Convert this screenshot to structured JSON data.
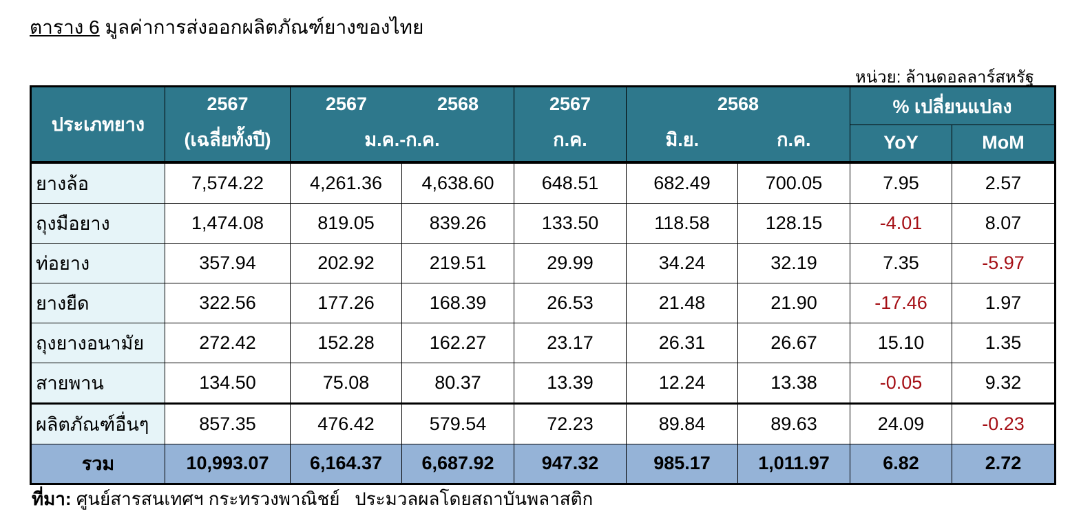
{
  "title": {
    "label": "ตาราง 6",
    "text": "มูลค่าการส่งออกผลิตภัณฑ์ยางของไทย"
  },
  "unit": "หน่วย: ล้านดอลลาร์สหรัฐ",
  "header": {
    "type": "ประเภทยาง",
    "c1_year": "2567",
    "c1_sub": "(เฉลี่ยทั้งปี)",
    "c2_year_a": "2567",
    "c2_year_b": "2568",
    "c2_sub": "ม.ค.-ก.ค.",
    "c3_year": "2567",
    "c3_sub": "ก.ค.",
    "c4_year": "2568",
    "c4_sub_a": "มิ.ย.",
    "c4_sub_b": "ก.ค.",
    "c5": "% เปลี่ยนแปลง",
    "yoy": "YoY",
    "mom": "MoM"
  },
  "rows": [
    {
      "name": "ยางล้อ",
      "values": [
        "7,574.22",
        "4,261.36",
        "4,638.60",
        "648.51",
        "682.49",
        "700.05",
        "7.95",
        "2.57"
      ]
    },
    {
      "name": "ถุงมือยาง",
      "values": [
        "1,474.08",
        "819.05",
        "839.26",
        "133.50",
        "118.58",
        "128.15",
        "-4.01",
        "8.07"
      ]
    },
    {
      "name": "ท่อยาง",
      "values": [
        "357.94",
        "202.92",
        "219.51",
        "29.99",
        "34.24",
        "32.19",
        "7.35",
        "-5.97"
      ]
    },
    {
      "name": "ยางยืด",
      "values": [
        "322.56",
        "177.26",
        "168.39",
        "26.53",
        "21.48",
        "21.90",
        "-17.46",
        "1.97"
      ]
    },
    {
      "name": "ถุงยางอนามัย",
      "values": [
        "272.42",
        "152.28",
        "162.27",
        "23.17",
        "26.31",
        "26.67",
        "15.10",
        "1.35"
      ]
    },
    {
      "name": "สายพาน",
      "values": [
        "134.50",
        "75.08",
        "80.37",
        "13.39",
        "12.24",
        "13.38",
        "-0.05",
        "9.32"
      ]
    },
    {
      "name": "ผลิตภัณฑ์อื่นๆ",
      "values": [
        "857.35",
        "476.42",
        "579.54",
        "72.23",
        "89.84",
        "89.63",
        "24.09",
        "-0.23"
      ]
    }
  ],
  "total": {
    "name": "รวม",
    "values": [
      "10,993.07",
      "6,164.37",
      "6,687.92",
      "947.32",
      "985.17",
      "1,011.97",
      "6.82",
      "2.72"
    ]
  },
  "source": {
    "label": "ที่มา:",
    "text": "ศูนย์สารสนเทศฯ กระทรวงพาณิชย์   ประมวลผลโดยสถาบันพลาสติก"
  },
  "colors": {
    "header_bg": "#2E788C",
    "name_col_bg": "#E6F4F8",
    "total_bg": "#95B3D7",
    "negative": "#A50F15"
  }
}
